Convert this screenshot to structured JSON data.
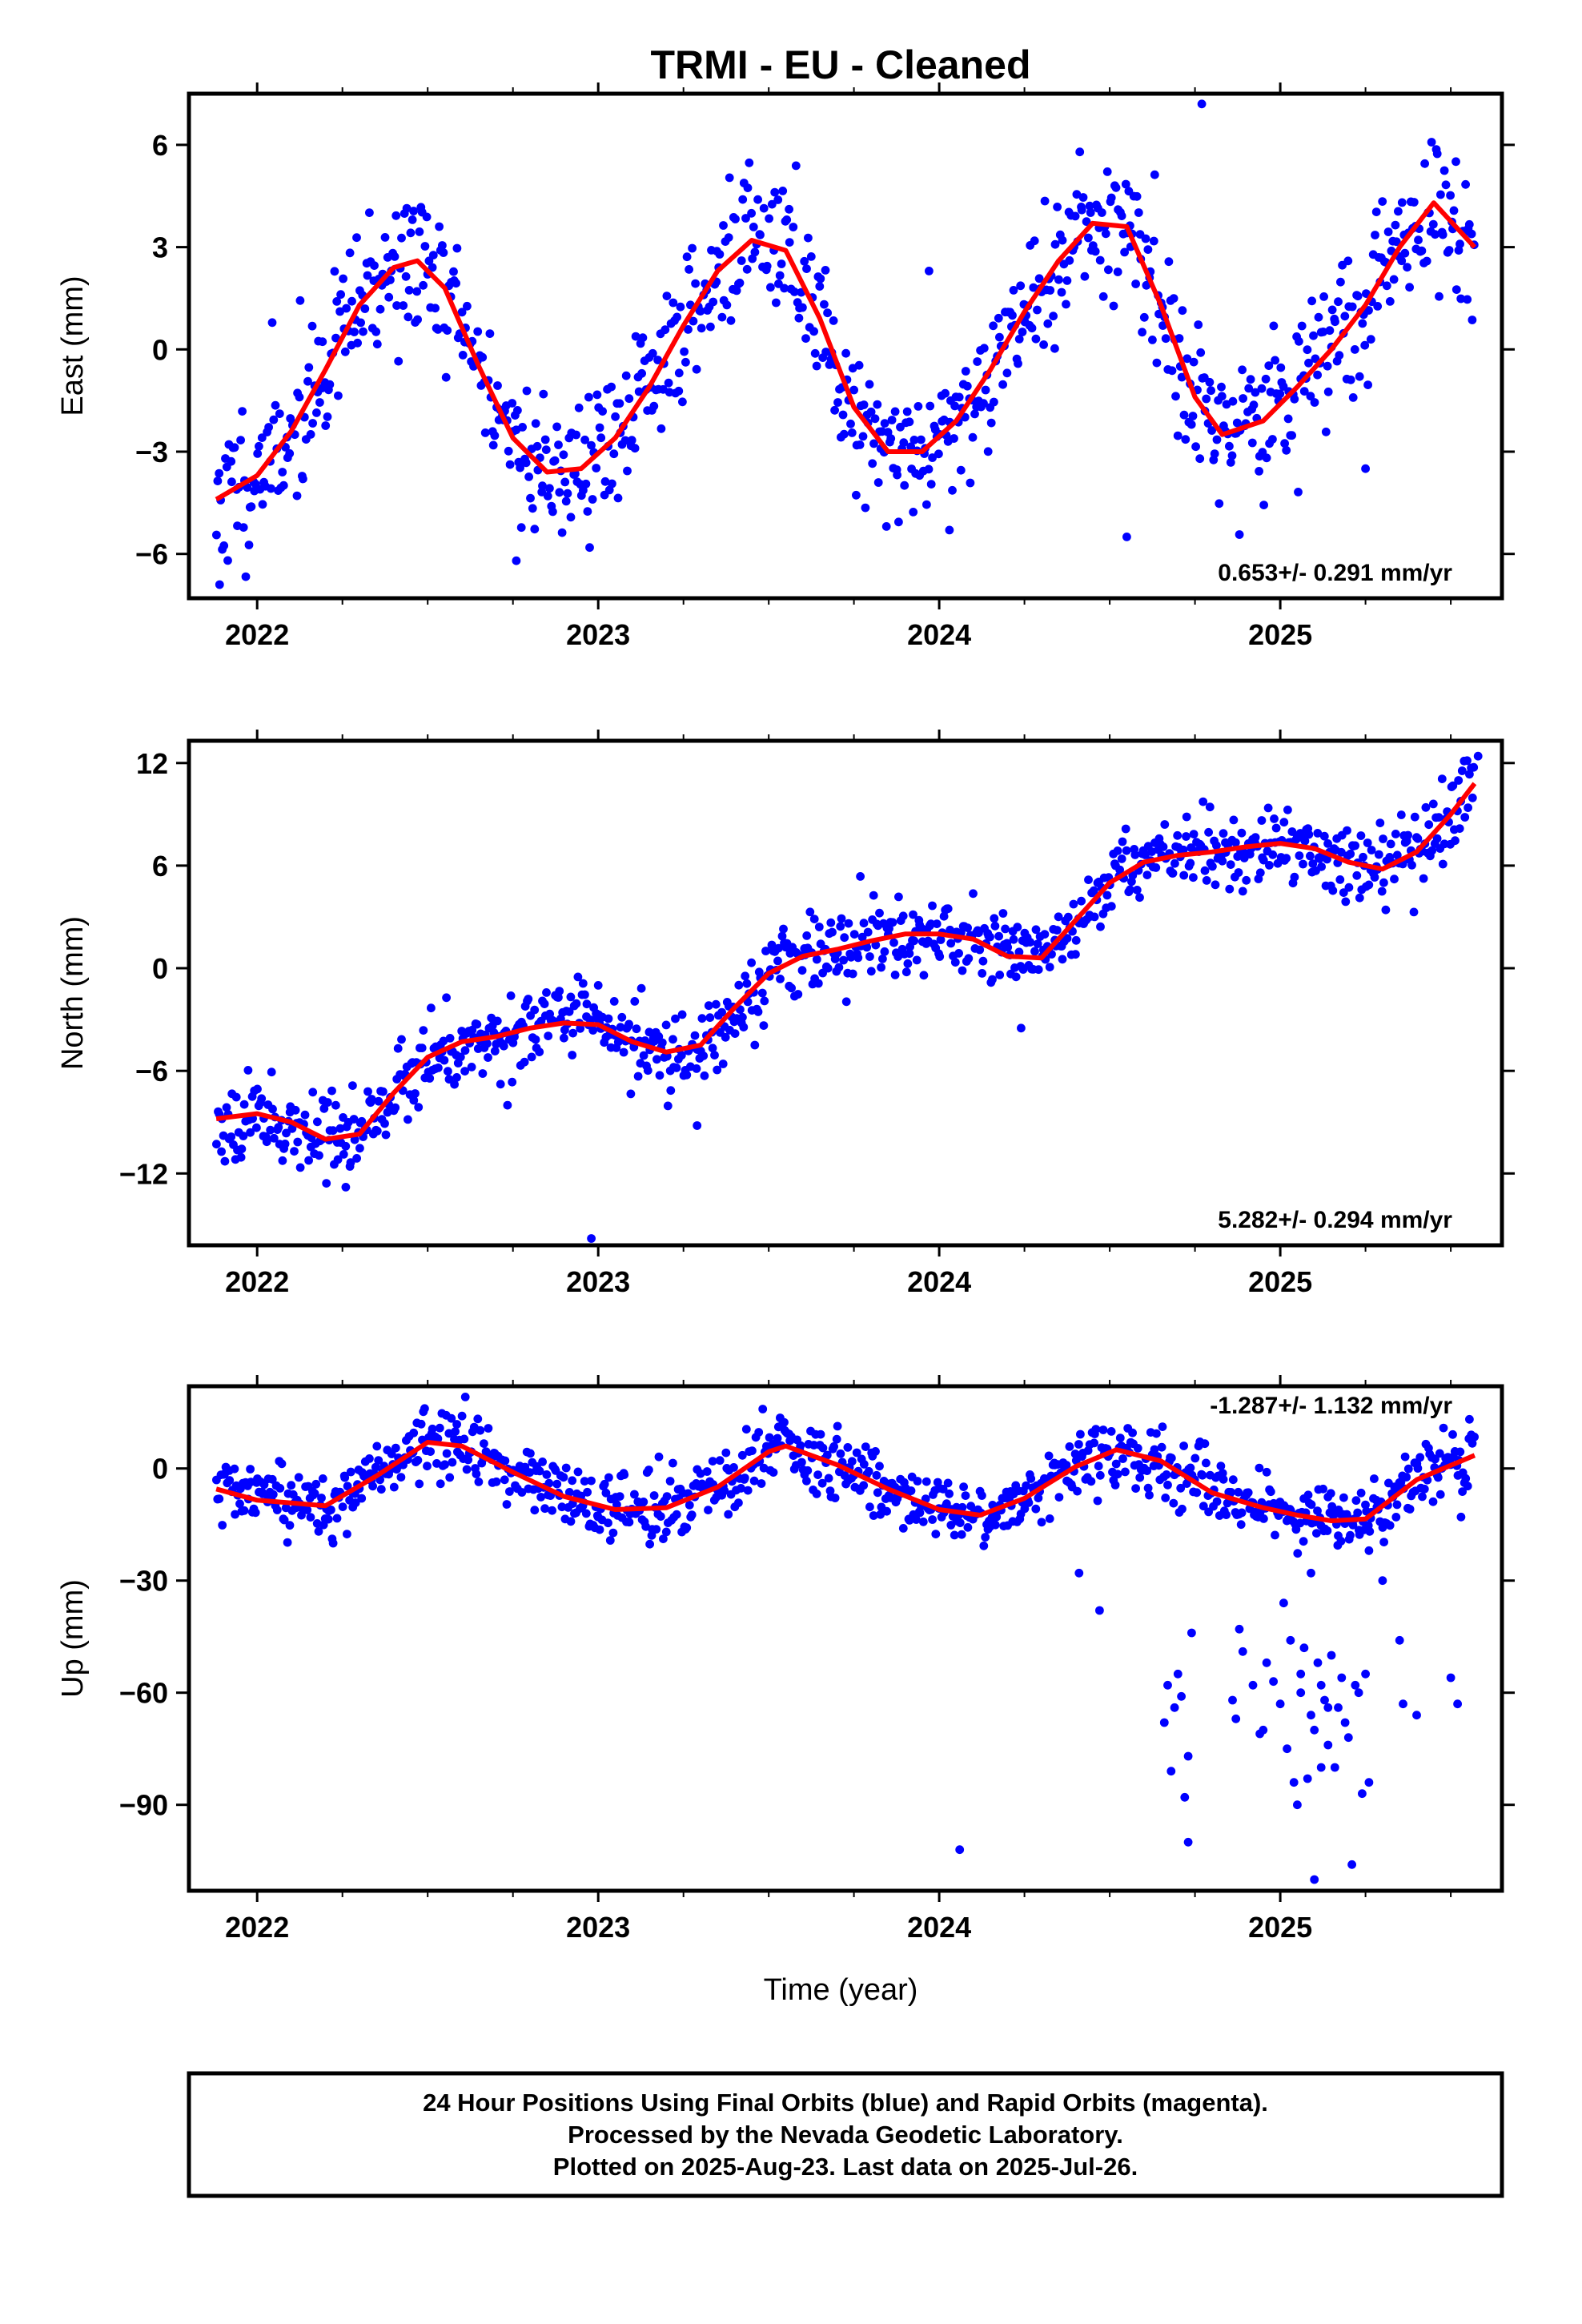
{
  "title": "TRMI  - EU - Cleaned",
  "colors": {
    "points": "#0000ff",
    "fit": "#ff0000",
    "frame": "#000000"
  },
  "xlabel": "Time (year)",
  "footer": {
    "line1": "24 Hour Positions Using Final Orbits (blue) and Rapid Orbits (magenta).",
    "line2": "Processed by the Nevada Geodetic Laboratory.",
    "line3": "Plotted on 2025-Aug-23. Last data on 2025-Jul-26."
  },
  "chart_data": [
    {
      "type": "scatter",
      "ylabel": "East (mm)",
      "rate_text": "0.653+/- 0.291 mm/yr",
      "xlim": [
        2021.8,
        2025.65
      ],
      "ylim": [
        -7.3,
        7.5
      ],
      "xticks": [
        2022,
        2023,
        2024,
        2025
      ],
      "xtick_labels": [
        "2022",
        "2023",
        "2024",
        "2025"
      ],
      "yticks": [
        6,
        3,
        0,
        -3,
        -6
      ],
      "ytick_labels": [
        "6",
        "3",
        "0",
        "−3",
        "−6"
      ],
      "series": [
        {
          "kind": "fit",
          "x": [
            2021.88,
            2022.0,
            2022.1,
            2022.2,
            2022.3,
            2022.4,
            2022.47,
            2022.55,
            2022.65,
            2022.75,
            2022.85,
            2022.95,
            2023.05,
            2023.15,
            2023.25,
            2023.35,
            2023.45,
            2023.55,
            2023.65,
            2023.75,
            2023.85,
            2023.95,
            2024.05,
            2024.15,
            2024.25,
            2024.35,
            2024.45,
            2024.55,
            2024.65,
            2024.75,
            2024.83,
            2024.95,
            2025.05,
            2025.15,
            2025.25,
            2025.35,
            2025.45,
            2025.57
          ],
          "y": [
            -4.4,
            -3.7,
            -2.4,
            -0.6,
            1.3,
            2.4,
            2.6,
            1.8,
            -0.5,
            -2.6,
            -3.6,
            -3.5,
            -2.6,
            -1.1,
            0.7,
            2.3,
            3.2,
            2.9,
            0.9,
            -1.7,
            -3.0,
            -3.0,
            -2.1,
            -0.6,
            1.1,
            2.6,
            3.7,
            3.6,
            1.3,
            -1.4,
            -2.5,
            -2.1,
            -1.1,
            0.0,
            1.3,
            3.0,
            4.3,
            3.0
          ]
        },
        {
          "kind": "points",
          "center": "fit",
          "spread": 1.1,
          "count": 900,
          "seed": 11,
          "outliers": [
            [
              2024.77,
              7.2
            ],
            [
              2021.89,
              -6.9
            ],
            [
              2023.97,
              2.3
            ],
            [
              2024.03,
              -5.3
            ],
            [
              2022.76,
              -6.2
            ],
            [
              2025.25,
              -3.5
            ],
            [
              2024.55,
              -5.5
            ]
          ]
        }
      ]
    },
    {
      "type": "scatter",
      "ylabel": "North (mm)",
      "rate_text": "5.282+/- 0.294 mm/yr",
      "xlim": [
        2021.8,
        2025.65
      ],
      "ylim": [
        -16.2,
        13.3
      ],
      "xticks": [
        2022,
        2023,
        2024,
        2025
      ],
      "xtick_labels": [
        "2022",
        "2023",
        "2024",
        "2025"
      ],
      "yticks": [
        12,
        6,
        0,
        -6,
        -12
      ],
      "ytick_labels": [
        "12",
        "6",
        "0",
        "−6",
        "−12"
      ],
      "series": [
        {
          "kind": "fit",
          "x": [
            2021.88,
            2022.0,
            2022.1,
            2022.2,
            2022.3,
            2022.4,
            2022.5,
            2022.6,
            2022.7,
            2022.8,
            2022.9,
            2023.0,
            2023.1,
            2023.2,
            2023.3,
            2023.4,
            2023.5,
            2023.6,
            2023.7,
            2023.8,
            2023.9,
            2024.0,
            2024.1,
            2024.2,
            2024.3,
            2024.4,
            2024.5,
            2024.6,
            2024.7,
            2024.8,
            2024.9,
            2025.0,
            2025.1,
            2025.2,
            2025.3,
            2025.4,
            2025.5,
            2025.57
          ],
          "y": [
            -8.8,
            -8.5,
            -9.0,
            -10.0,
            -9.7,
            -7.3,
            -5.2,
            -4.3,
            -4.0,
            -3.5,
            -3.2,
            -3.3,
            -4.3,
            -4.9,
            -4.5,
            -2.3,
            -0.3,
            0.7,
            1.1,
            1.6,
            2.0,
            2.0,
            1.7,
            0.7,
            0.6,
            2.8,
            5.0,
            6.2,
            6.6,
            6.8,
            7.1,
            7.3,
            7.0,
            6.2,
            5.8,
            6.8,
            9.0,
            10.8
          ]
        },
        {
          "kind": "points",
          "center": "fit",
          "spread": 1.15,
          "count": 900,
          "seed": 23,
          "outliers": [
            [
              2022.98,
              -15.8
            ],
            [
              2022.26,
              -12.8
            ],
            [
              2023.29,
              -9.2
            ],
            [
              2024.24,
              -3.5
            ],
            [
              2025.58,
              12.4
            ],
            [
              2023.0,
              -1.0
            ],
            [
              2024.89,
              4.5
            ]
          ]
        }
      ]
    },
    {
      "type": "scatter",
      "ylabel": "Up (mm)",
      "rate_text": "-1.287+/- 1.132 mm/yr",
      "xlim": [
        2021.8,
        2025.65
      ],
      "ylim": [
        -113,
        22
      ],
      "xticks": [
        2022,
        2023,
        2024,
        2025
      ],
      "xtick_labels": [
        "2022",
        "2023",
        "2024",
        "2025"
      ],
      "yticks": [
        0,
        -30,
        -60,
        -90
      ],
      "ytick_labels": [
        "0",
        "−30",
        "−60",
        "−90"
      ],
      "series": [
        {
          "kind": "fit",
          "x": [
            2021.88,
            2022.0,
            2022.2,
            2022.35,
            2022.5,
            2022.6,
            2022.75,
            2022.9,
            2023.05,
            2023.2,
            2023.35,
            2023.5,
            2023.55,
            2023.7,
            2023.85,
            2024.0,
            2024.12,
            2024.25,
            2024.4,
            2024.52,
            2024.65,
            2024.8,
            2024.95,
            2025.05,
            2025.15,
            2025.25,
            2025.4,
            2025.57
          ],
          "y": [
            -5.5,
            -8.5,
            -10.0,
            -2.0,
            7.0,
            6.0,
            -1.0,
            -7.5,
            -11.0,
            -10.5,
            -5.0,
            4.5,
            6.0,
            1.0,
            -5.5,
            -11.0,
            -12.5,
            -8.0,
            0.5,
            5.0,
            2.0,
            -6.5,
            -10.5,
            -12.5,
            -14.0,
            -13.5,
            -3.0,
            3.5
          ]
        },
        {
          "kind": "points",
          "center": "fit",
          "spread": 4.5,
          "count": 950,
          "seed": 37,
          "outliers": [
            [
              2024.41,
              -28
            ],
            [
              2024.47,
              -38
            ],
            [
              2024.06,
              -102
            ],
            [
              2024.73,
              -100
            ],
            [
              2025.1,
              -110
            ],
            [
              2025.21,
              -106
            ],
            [
              2024.68,
              -81
            ],
            [
              2024.72,
              -88
            ],
            [
              2024.74,
              -44
            ],
            [
              2024.67,
              -58
            ],
            [
              2024.7,
              -55
            ],
            [
              2024.71,
              -61
            ],
            [
              2024.69,
              -64
            ],
            [
              2024.73,
              -77
            ],
            [
              2024.66,
              -68
            ],
            [
              2024.88,
              -43
            ],
            [
              2024.86,
              -62
            ],
            [
              2024.87,
              -67
            ],
            [
              2024.92,
              -58
            ],
            [
              2024.94,
              -71
            ],
            [
              2024.96,
              -52
            ],
            [
              2024.98,
              -57
            ],
            [
              2025.0,
              -63
            ],
            [
              2025.02,
              -75
            ],
            [
              2025.04,
              -84
            ],
            [
              2025.05,
              -90
            ],
            [
              2025.03,
              -46
            ],
            [
              2025.06,
              -60
            ],
            [
              2025.09,
              -66
            ],
            [
              2025.1,
              -70
            ],
            [
              2025.12,
              -58
            ],
            [
              2025.13,
              -62
            ],
            [
              2025.14,
              -74
            ],
            [
              2025.15,
              -50
            ],
            [
              2025.16,
              -80
            ],
            [
              2025.17,
              -64
            ],
            [
              2025.18,
              -56
            ],
            [
              2025.19,
              -68
            ],
            [
              2025.2,
              -72
            ],
            [
              2025.22,
              -58
            ],
            [
              2025.23,
              -60
            ],
            [
              2025.25,
              -55
            ],
            [
              2025.24,
              -87
            ],
            [
              2025.26,
              -84
            ],
            [
              2025.08,
              -83
            ],
            [
              2025.11,
              -52
            ],
            [
              2025.07,
              -48
            ],
            [
              2025.01,
              -36
            ],
            [
              2025.09,
              -28
            ],
            [
              2025.17,
              -18
            ],
            [
              2025.26,
              -22
            ],
            [
              2025.3,
              -30
            ],
            [
              2025.35,
              -46
            ],
            [
              2025.36,
              -63
            ],
            [
              2025.4,
              -66
            ],
            [
              2025.5,
              -56
            ],
            [
              2025.52,
              -63
            ],
            [
              2025.53,
              -13
            ],
            [
              2024.89,
              -49
            ],
            [
              2024.95,
              -70
            ],
            [
              2025.14,
              -64
            ],
            [
              2025.12,
              -80
            ],
            [
              2025.06,
              -55
            ]
          ]
        }
      ]
    }
  ]
}
